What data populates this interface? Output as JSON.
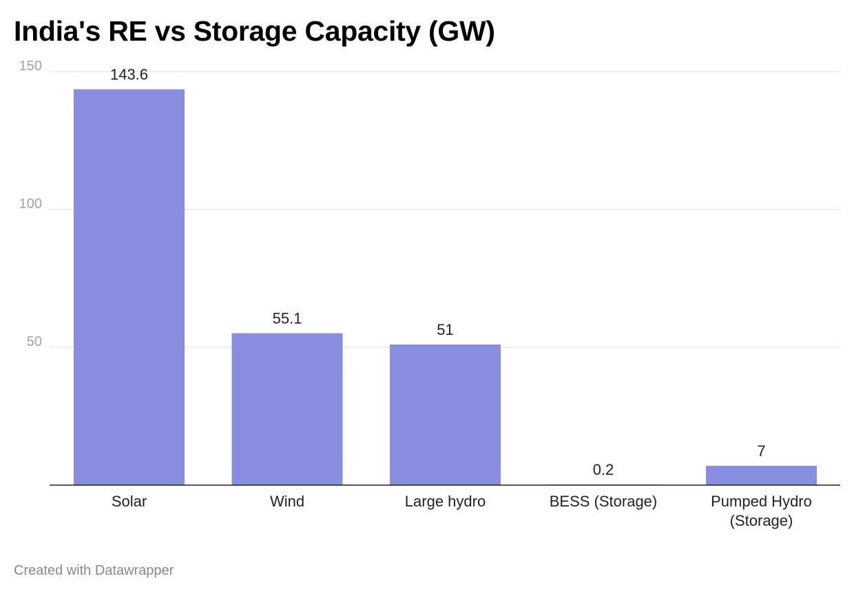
{
  "chart_data": {
    "type": "bar",
    "title": "India's RE vs Storage Capacity (GW)",
    "categories": [
      "Solar",
      "Wind",
      "Large hydro",
      "BESS (Storage)",
      "Pumped Hydro (Storage)"
    ],
    "category_lines": [
      [
        "Solar"
      ],
      [
        "Wind"
      ],
      [
        "Large hydro"
      ],
      [
        "BESS (Storage)"
      ],
      [
        "Pumped Hydro",
        "(Storage)"
      ]
    ],
    "values": [
      143.6,
      55.1,
      51,
      0.2,
      7
    ],
    "value_labels": [
      "143.6",
      "55.1",
      "51",
      "0.2",
      "7"
    ],
    "yticks": [
      50,
      100,
      150
    ],
    "ytick_labels": [
      "50",
      "100",
      "150"
    ],
    "ylim": [
      0,
      150
    ],
    "xlabel": "",
    "ylabel": "",
    "grid": true,
    "legend": "none",
    "bar_color": "#898de0"
  },
  "footer": {
    "credit": "Created with Datawrapper"
  }
}
